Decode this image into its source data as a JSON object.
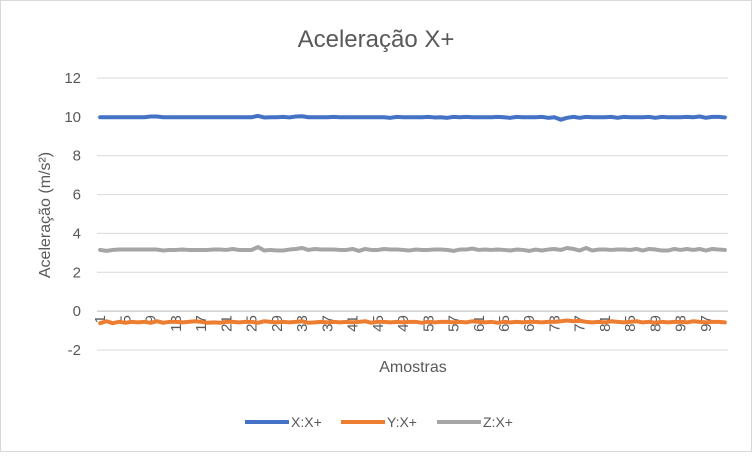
{
  "chart_data": {
    "type": "line",
    "title": "Aceleração X+",
    "xlabel": "Amostras",
    "ylabel": "Aceleração (m/s²)",
    "ylim": [
      -2,
      12
    ],
    "y_ticks": [
      -2,
      0,
      2,
      4,
      6,
      8,
      10,
      12
    ],
    "y_tick_labels": [
      "-2",
      "0",
      "2",
      "4",
      "6",
      "8",
      "10",
      "12"
    ],
    "x": [
      1,
      2,
      3,
      4,
      5,
      6,
      7,
      8,
      9,
      10,
      11,
      12,
      13,
      14,
      15,
      16,
      17,
      18,
      19,
      20,
      21,
      22,
      23,
      24,
      25,
      26,
      27,
      28,
      29,
      30,
      31,
      32,
      33,
      34,
      35,
      36,
      37,
      38,
      39,
      40,
      41,
      42,
      43,
      44,
      45,
      46,
      47,
      48,
      49,
      50,
      51,
      52,
      53,
      54,
      55,
      56,
      57,
      58,
      59,
      60,
      61,
      62,
      63,
      64,
      65,
      66,
      67,
      68,
      69,
      70,
      71,
      72,
      73,
      74,
      75,
      76,
      77,
      78,
      79,
      80,
      81,
      82,
      83,
      84,
      85,
      86,
      87,
      88,
      89,
      90,
      91,
      92,
      93,
      94,
      95,
      96,
      97,
      98,
      99,
      100
    ],
    "x_tick_labels": [
      "1",
      "5",
      "9",
      "13",
      "17",
      "21",
      "25",
      "29",
      "33",
      "37",
      "41",
      "45",
      "49",
      "53",
      "57",
      "61",
      "65",
      "69",
      "73",
      "77",
      "81",
      "85",
      "89",
      "93",
      "97"
    ],
    "grid": true,
    "legend_position": "bottom",
    "series": [
      {
        "name": "X:X+",
        "color": "#4472c4",
        "values": [
          9.98,
          9.98,
          9.98,
          9.98,
          9.98,
          9.98,
          9.98,
          9.98,
          10.02,
          10.02,
          9.98,
          9.98,
          9.98,
          9.98,
          9.98,
          9.98,
          9.98,
          9.98,
          9.98,
          9.98,
          9.98,
          9.98,
          9.98,
          9.98,
          9.98,
          10.05,
          9.97,
          9.98,
          9.98,
          10.0,
          9.97,
          10.02,
          10.03,
          9.98,
          9.98,
          9.98,
          9.98,
          10.0,
          9.98,
          9.98,
          9.98,
          9.98,
          9.98,
          9.98,
          9.98,
          9.98,
          9.95,
          10.0,
          9.98,
          9.98,
          9.98,
          9.98,
          10.0,
          9.97,
          9.98,
          9.95,
          10.0,
          9.98,
          10.0,
          9.98,
          9.98,
          9.98,
          9.98,
          10.0,
          9.98,
          9.95,
          10.0,
          9.98,
          9.98,
          9.98,
          10.0,
          9.95,
          9.98,
          9.85,
          9.95,
          10.0,
          9.95,
          10.0,
          9.98,
          9.98,
          9.98,
          10.0,
          9.95,
          10.0,
          9.98,
          9.98,
          9.98,
          10.0,
          9.95,
          10.0,
          9.98,
          9.98,
          9.98,
          10.0,
          9.98,
          10.02,
          9.95,
          10.0,
          10.0,
          9.97
        ]
      },
      {
        "name": "Y:X+",
        "color": "#ed7d31",
        "values": [
          -0.62,
          -0.52,
          -0.62,
          -0.55,
          -0.6,
          -0.55,
          -0.58,
          -0.55,
          -0.6,
          -0.52,
          -0.6,
          -0.55,
          -0.55,
          -0.58,
          -0.55,
          -0.52,
          -0.55,
          -0.6,
          -0.58,
          -0.6,
          -0.55,
          -0.55,
          -0.58,
          -0.55,
          -0.55,
          -0.6,
          -0.52,
          -0.55,
          -0.58,
          -0.55,
          -0.58,
          -0.55,
          -0.52,
          -0.6,
          -0.58,
          -0.55,
          -0.58,
          -0.55,
          -0.58,
          -0.55,
          -0.58,
          -0.55,
          -0.52,
          -0.6,
          -0.55,
          -0.55,
          -0.58,
          -0.55,
          -0.58,
          -0.55,
          -0.55,
          -0.6,
          -0.55,
          -0.58,
          -0.55,
          -0.55,
          -0.58,
          -0.55,
          -0.58,
          -0.52,
          -0.55,
          -0.58,
          -0.55,
          -0.6,
          -0.55,
          -0.58,
          -0.55,
          -0.58,
          -0.55,
          -0.55,
          -0.58,
          -0.55,
          -0.55,
          -0.52,
          -0.48,
          -0.52,
          -0.5,
          -0.55,
          -0.58,
          -0.55,
          -0.58,
          -0.52,
          -0.55,
          -0.58,
          -0.55,
          -0.52,
          -0.58,
          -0.55,
          -0.6,
          -0.55,
          -0.58,
          -0.55,
          -0.55,
          -0.58,
          -0.52,
          -0.55,
          -0.58,
          -0.55,
          -0.55,
          -0.58
        ]
      },
      {
        "name": "Z:X+",
        "color": "#a5a5a5",
        "values": [
          3.15,
          3.1,
          3.15,
          3.17,
          3.17,
          3.17,
          3.17,
          3.17,
          3.17,
          3.17,
          3.12,
          3.15,
          3.15,
          3.17,
          3.15,
          3.15,
          3.15,
          3.15,
          3.17,
          3.17,
          3.15,
          3.2,
          3.15,
          3.15,
          3.15,
          3.3,
          3.12,
          3.15,
          3.12,
          3.12,
          3.17,
          3.2,
          3.25,
          3.15,
          3.2,
          3.17,
          3.17,
          3.17,
          3.15,
          3.15,
          3.2,
          3.1,
          3.2,
          3.15,
          3.15,
          3.2,
          3.17,
          3.17,
          3.15,
          3.12,
          3.17,
          3.15,
          3.15,
          3.17,
          3.17,
          3.15,
          3.1,
          3.17,
          3.17,
          3.22,
          3.15,
          3.17,
          3.15,
          3.17,
          3.15,
          3.12,
          3.17,
          3.15,
          3.1,
          3.17,
          3.12,
          3.17,
          3.2,
          3.15,
          3.25,
          3.2,
          3.12,
          3.25,
          3.12,
          3.17,
          3.17,
          3.15,
          3.17,
          3.17,
          3.15,
          3.2,
          3.12,
          3.2,
          3.17,
          3.12,
          3.12,
          3.2,
          3.15,
          3.2,
          3.15,
          3.2,
          3.12,
          3.2,
          3.17,
          3.15
        ]
      }
    ]
  }
}
